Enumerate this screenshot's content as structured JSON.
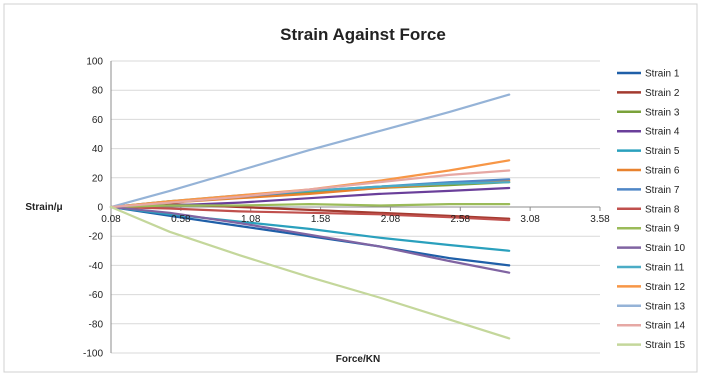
{
  "chart_data": {
    "type": "line",
    "title": "Strain Against Force",
    "xlabel": "Force/KN",
    "ylabel": "Strain/μ",
    "xlim": [
      0.08,
      3.58
    ],
    "ylim": [
      -100,
      100
    ],
    "x_ticks": [
      "0.08",
      "0.58",
      "1.08",
      "1.58",
      "2.08",
      "2.58",
      "3.08",
      "3.58"
    ],
    "y_ticks": [
      "100",
      "80",
      "60",
      "40",
      "20",
      "0",
      "-20",
      "-40",
      "-60",
      "-80",
      "-100"
    ],
    "grid": "horizontal",
    "legend_position": "right",
    "x": [
      0.08,
      0.5,
      1.0,
      1.5,
      2.0,
      2.5,
      2.93
    ],
    "series": [
      {
        "name": "Strain 1",
        "color": "#1f5fa8",
        "values": [
          0,
          -6,
          -13,
          -20,
          -27,
          -35,
          -40
        ]
      },
      {
        "name": "Strain 2",
        "color": "#a33a2f",
        "values": [
          0,
          2,
          0,
          -2,
          -4,
          -6,
          -8
        ]
      },
      {
        "name": "Strain 3",
        "color": "#7aa23a",
        "values": [
          0,
          4,
          7,
          10,
          13,
          15,
          17
        ]
      },
      {
        "name": "Strain 4",
        "color": "#6a3f9a",
        "values": [
          0,
          1,
          3,
          6,
          9,
          11,
          13
        ]
      },
      {
        "name": "Strain 5",
        "color": "#2aa0bd",
        "values": [
          0,
          -5,
          -10,
          -15,
          -21,
          -26,
          -30
        ]
      },
      {
        "name": "Strain 6",
        "color": "#e8822e",
        "values": [
          0,
          3,
          6,
          9,
          13,
          16,
          18
        ]
      },
      {
        "name": "Strain 7",
        "color": "#4f86c6",
        "values": [
          0,
          3,
          7,
          11,
          14,
          17,
          19
        ]
      },
      {
        "name": "Strain 8",
        "color": "#c0504d",
        "values": [
          0,
          -1,
          -3,
          -4,
          -5,
          -7,
          -9
        ]
      },
      {
        "name": "Strain 9",
        "color": "#9bbb59",
        "values": [
          0,
          1,
          1,
          2,
          1,
          2,
          2
        ]
      },
      {
        "name": "Strain 10",
        "color": "#8064a2",
        "values": [
          0,
          -4,
          -11,
          -19,
          -27,
          -37,
          -45
        ]
      },
      {
        "name": "Strain 11",
        "color": "#4bacc6",
        "values": [
          0,
          4,
          8,
          11,
          14,
          16,
          17
        ]
      },
      {
        "name": "Strain 12",
        "color": "#f79646",
        "values": [
          0,
          4,
          8,
          12,
          18,
          25,
          32
        ]
      },
      {
        "name": "Strain 13",
        "color": "#95b3d7",
        "values": [
          0,
          11,
          25,
          39,
          52,
          65,
          77
        ]
      },
      {
        "name": "Strain 14",
        "color": "#e6a8a4",
        "values": [
          0,
          3,
          7,
          12,
          17,
          22,
          25
        ]
      },
      {
        "name": "Strain 15",
        "color": "#c4d79b",
        "values": [
          0,
          -17,
          -33,
          -48,
          -62,
          -77,
          -90
        ]
      }
    ]
  }
}
